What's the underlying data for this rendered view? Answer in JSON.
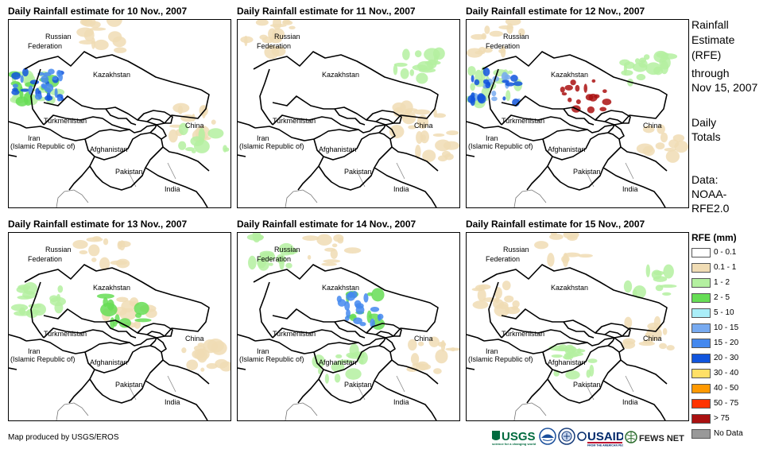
{
  "panels": [
    {
      "title": "Daily Rainfall estimate for 10 Nov., 2007"
    },
    {
      "title": "Daily Rainfall estimate for 11 Nov., 2007"
    },
    {
      "title": "Daily Rainfall estimate for 12 Nov., 2007"
    },
    {
      "title": "Daily Rainfall estimate for 13 Nov., 2007"
    },
    {
      "title": "Daily Rainfall estimate for 14 Nov., 2007"
    },
    {
      "title": "Daily Rainfall estimate for 15 Nov., 2007"
    }
  ],
  "labels": {
    "russia_1": "Russian",
    "russia_2": "Federation",
    "kazakhstan": "Kazakhstan",
    "turkmenistan": "Turkmenistan",
    "iran_1": "Iran",
    "iran_2": "(Islamic Republic of)",
    "afghanistan": "Afghanistan",
    "pakistan": "Pakistan",
    "china": "China",
    "india": "India"
  },
  "side": {
    "heading_1": "Rainfall",
    "heading_2": "Estimate",
    "heading_3": "(RFE)",
    "through_1": "through",
    "through_2": "Nov 15, 2007",
    "daily_1": "Daily",
    "daily_2": "Totals",
    "data_1": "Data:",
    "data_2": "NOAA-",
    "data_3": "RFE2.0"
  },
  "legend": {
    "title": "RFE (mm)",
    "items": [
      {
        "label": "0 - 0.1",
        "color": "#ffffff"
      },
      {
        "label": "0.1 - 1",
        "color": "#f0dcb4"
      },
      {
        "label": "1 - 2",
        "color": "#b4f0a0"
      },
      {
        "label": "2 - 5",
        "color": "#66dd55"
      },
      {
        "label": "5 - 10",
        "color": "#aaeef8"
      },
      {
        "label": "10 - 15",
        "color": "#77aaf0"
      },
      {
        "label": "15 - 20",
        "color": "#4488ee"
      },
      {
        "label": "20 - 30",
        "color": "#1155dd"
      },
      {
        "label": "30 - 40",
        "color": "#ffe066"
      },
      {
        "label": "40 - 50",
        "color": "#ff9900"
      },
      {
        "label": "50 - 75",
        "color": "#ff3300"
      },
      {
        "label": "> 75",
        "color": "#aa1111"
      },
      {
        "label": "No Data",
        "color": "#999999"
      }
    ]
  },
  "credit": "Map produced by USGS/EROS",
  "logos": {
    "usgs": "USGS",
    "usaid": "USAID",
    "fewsnet": "FEWS NET"
  },
  "rain": [
    [
      {
        "c": 2,
        "area": "w"
      },
      {
        "c": 1,
        "area": "n"
      },
      {
        "c": 3,
        "area": "w"
      },
      {
        "c": 7,
        "area": "w"
      },
      {
        "c": 6,
        "area": "w"
      },
      {
        "c": 1,
        "area": "e"
      },
      {
        "c": 2,
        "area": "se"
      }
    ],
    [
      {
        "c": 1,
        "area": "nw"
      },
      {
        "c": 1,
        "area": "e"
      },
      {
        "c": 2,
        "area": "ne"
      },
      {
        "c": 1,
        "area": "se"
      }
    ],
    [
      {
        "c": 1,
        "area": "nw"
      },
      {
        "c": 2,
        "area": "w"
      },
      {
        "c": 5,
        "area": "w"
      },
      {
        "c": 7,
        "area": "w"
      },
      {
        "c": 2,
        "area": "ne"
      },
      {
        "c": 11,
        "area": "c"
      },
      {
        "c": 1,
        "area": "se"
      }
    ],
    [
      {
        "c": 1,
        "area": "n"
      },
      {
        "c": 1,
        "area": "c"
      },
      {
        "c": 2,
        "area": "w"
      },
      {
        "c": 3,
        "area": "c"
      },
      {
        "c": 1,
        "area": "se"
      }
    ],
    [
      {
        "c": 1,
        "area": "n"
      },
      {
        "c": 2,
        "area": "nw"
      },
      {
        "c": 3,
        "area": "c"
      },
      {
        "c": 6,
        "area": "c"
      },
      {
        "c": 2,
        "area": "s"
      },
      {
        "c": 1,
        "area": "se"
      }
    ],
    [
      {
        "c": 1,
        "area": "n"
      },
      {
        "c": 2,
        "area": "ne"
      },
      {
        "c": 1,
        "area": "w"
      },
      {
        "c": 2,
        "area": "s"
      },
      {
        "c": 1,
        "area": "e"
      }
    ]
  ]
}
